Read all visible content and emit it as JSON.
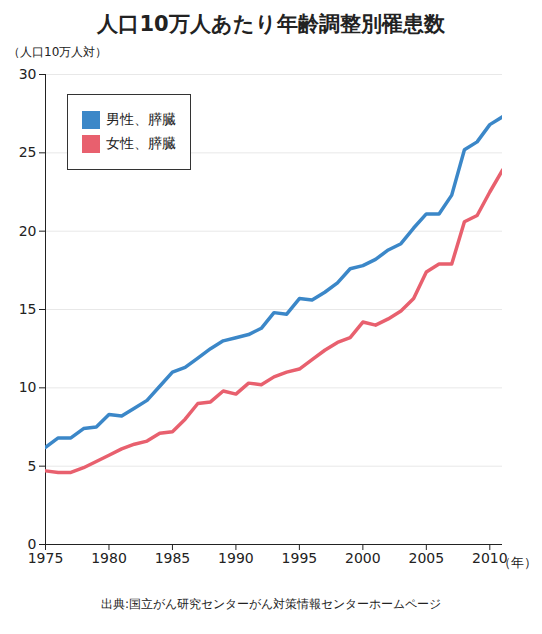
{
  "chart_data": {
    "type": "line",
    "title": "人口10万人あたり年齢調整別罹患数",
    "ylabel": "（人口10万人対）",
    "xlabel": "（年）",
    "caption": "出典:国立がん研究センターがん対策情報センターホームページ",
    "x": [
      1975,
      1976,
      1977,
      1978,
      1979,
      1980,
      1981,
      1982,
      1983,
      1984,
      1985,
      1986,
      1987,
      1988,
      1989,
      1990,
      1991,
      1992,
      1993,
      1994,
      1995,
      1996,
      1997,
      1998,
      1999,
      2000,
      2001,
      2002,
      2003,
      2004,
      2005,
      2006,
      2007,
      2008,
      2009,
      2010,
      2011
    ],
    "series": [
      {
        "name": "男性、膵臓",
        "color": "#3b87c8",
        "values": [
          6.2,
          6.8,
          6.8,
          7.4,
          7.5,
          8.3,
          8.2,
          8.7,
          9.2,
          10.1,
          11.0,
          11.3,
          11.9,
          12.5,
          13.0,
          13.2,
          13.4,
          13.8,
          14.8,
          14.7,
          15.7,
          15.6,
          16.1,
          16.7,
          17.6,
          17.8,
          18.2,
          18.8,
          19.2,
          20.2,
          21.1,
          21.1,
          22.3,
          25.2,
          25.7,
          26.8,
          27.3
        ]
      },
      {
        "name": "女性、膵臓",
        "color": "#e8606e",
        "values": [
          4.7,
          4.6,
          4.6,
          4.9,
          5.3,
          5.7,
          6.1,
          6.4,
          6.6,
          7.1,
          7.2,
          8.0,
          9.0,
          9.1,
          9.8,
          9.6,
          10.3,
          10.2,
          10.7,
          11.0,
          11.2,
          11.8,
          12.4,
          12.9,
          13.2,
          14.2,
          14.0,
          14.4,
          14.9,
          15.7,
          17.4,
          17.9,
          17.9,
          20.6,
          21.0,
          22.5,
          23.9
        ]
      }
    ],
    "xlim": [
      1975,
      2011
    ],
    "ylim": [
      0,
      30
    ],
    "xticks": [
      1975,
      1980,
      1985,
      1990,
      1995,
      2000,
      2005,
      2010
    ],
    "yticks": [
      0,
      5,
      10,
      15,
      20,
      25,
      30
    ],
    "grid": true,
    "legend": "top-left"
  }
}
